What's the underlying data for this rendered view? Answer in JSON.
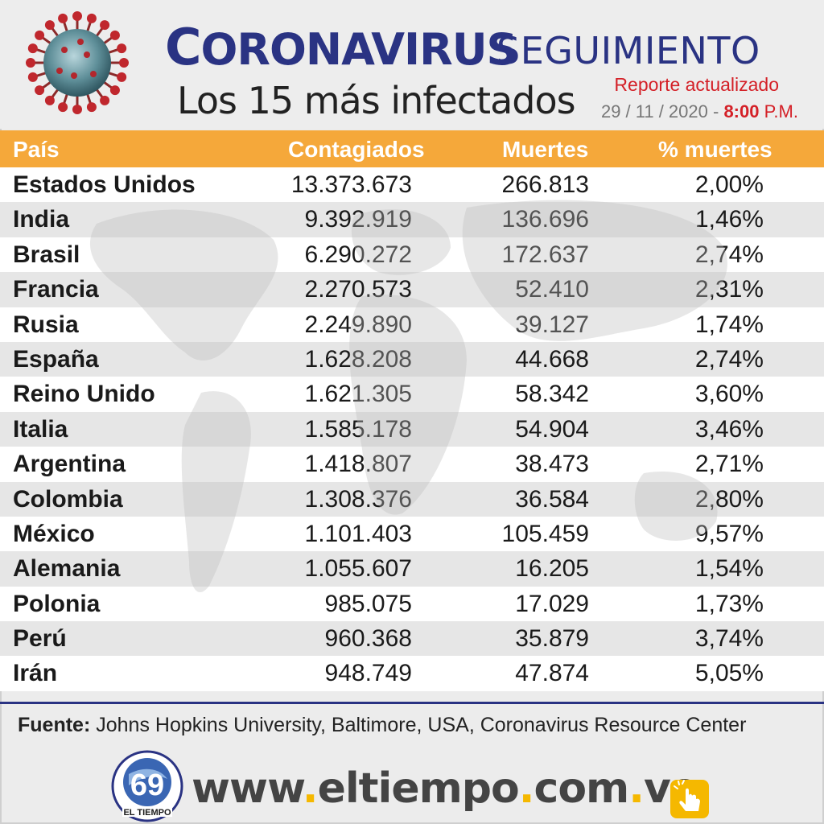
{
  "header": {
    "title_initial": "C",
    "title_rest": "ORONAVIRUS",
    "title_secondary": "SEGUIMIENTO",
    "subtitle_pre": "Los ",
    "subtitle_num": "15",
    "subtitle_post": " más infectados",
    "updated_label": "Reporte actualizado",
    "updated_date": "29 / 11 / 2020 - ",
    "updated_time": "8:00",
    "updated_pm": " P.M.",
    "virus_icon": "coronavirus-icon"
  },
  "table": {
    "headers": [
      "País",
      "Contagiados",
      "Muertes",
      "% muertes"
    ],
    "rows": [
      [
        "Estados Unidos",
        "13.373.673",
        "266.813",
        "2,00%"
      ],
      [
        "India",
        "9.392.919",
        "136.696",
        "1,46%"
      ],
      [
        "Brasil",
        "6.290.272",
        "172.637",
        "2,74%"
      ],
      [
        "Francia",
        "2.270.573",
        "52.410",
        "2,31%"
      ],
      [
        "Rusia",
        "2.249.890",
        "39.127",
        "1,74%"
      ],
      [
        "España",
        "1.628.208",
        "44.668",
        "2,74%"
      ],
      [
        "Reino Unido",
        "1.621.305",
        "58.342",
        "3,60%"
      ],
      [
        "Italia",
        "1.585.178",
        "54.904",
        "3,46%"
      ],
      [
        "Argentina",
        "1.418.807",
        "38.473",
        "2,71%"
      ],
      [
        "Colombia",
        "1.308.376",
        "36.584",
        "2,80%"
      ],
      [
        "México",
        "1.101.403",
        "105.459",
        "9,57%"
      ],
      [
        "Alemania",
        "1.055.607",
        "16.205",
        "1,54%"
      ],
      [
        "Polonia",
        "985.075",
        "17.029",
        "1,73%"
      ],
      [
        "Perú",
        "960.368",
        "35.879",
        "3,74%"
      ],
      [
        "Irán",
        "948.749",
        "47.874",
        "5,05%"
      ]
    ]
  },
  "footer": {
    "source_label": "Fuente:",
    "source_text": " Johns Hopkins University, Baltimore, USA, Coronavirus Resource Center",
    "site_parts": [
      "www",
      ".",
      "eltiempo",
      ".",
      "com",
      ".",
      "ve"
    ],
    "logo_number": "69",
    "logo_name": "EL TIEMPO",
    "logo_icon": "el-tiempo-logo",
    "click_icon": "hand-click-icon"
  },
  "colors": {
    "brand_blue": "#2a3383",
    "header_orange": "#f5a83a",
    "accent_red": "#d42027",
    "dot_yellow": "#f5b800"
  }
}
